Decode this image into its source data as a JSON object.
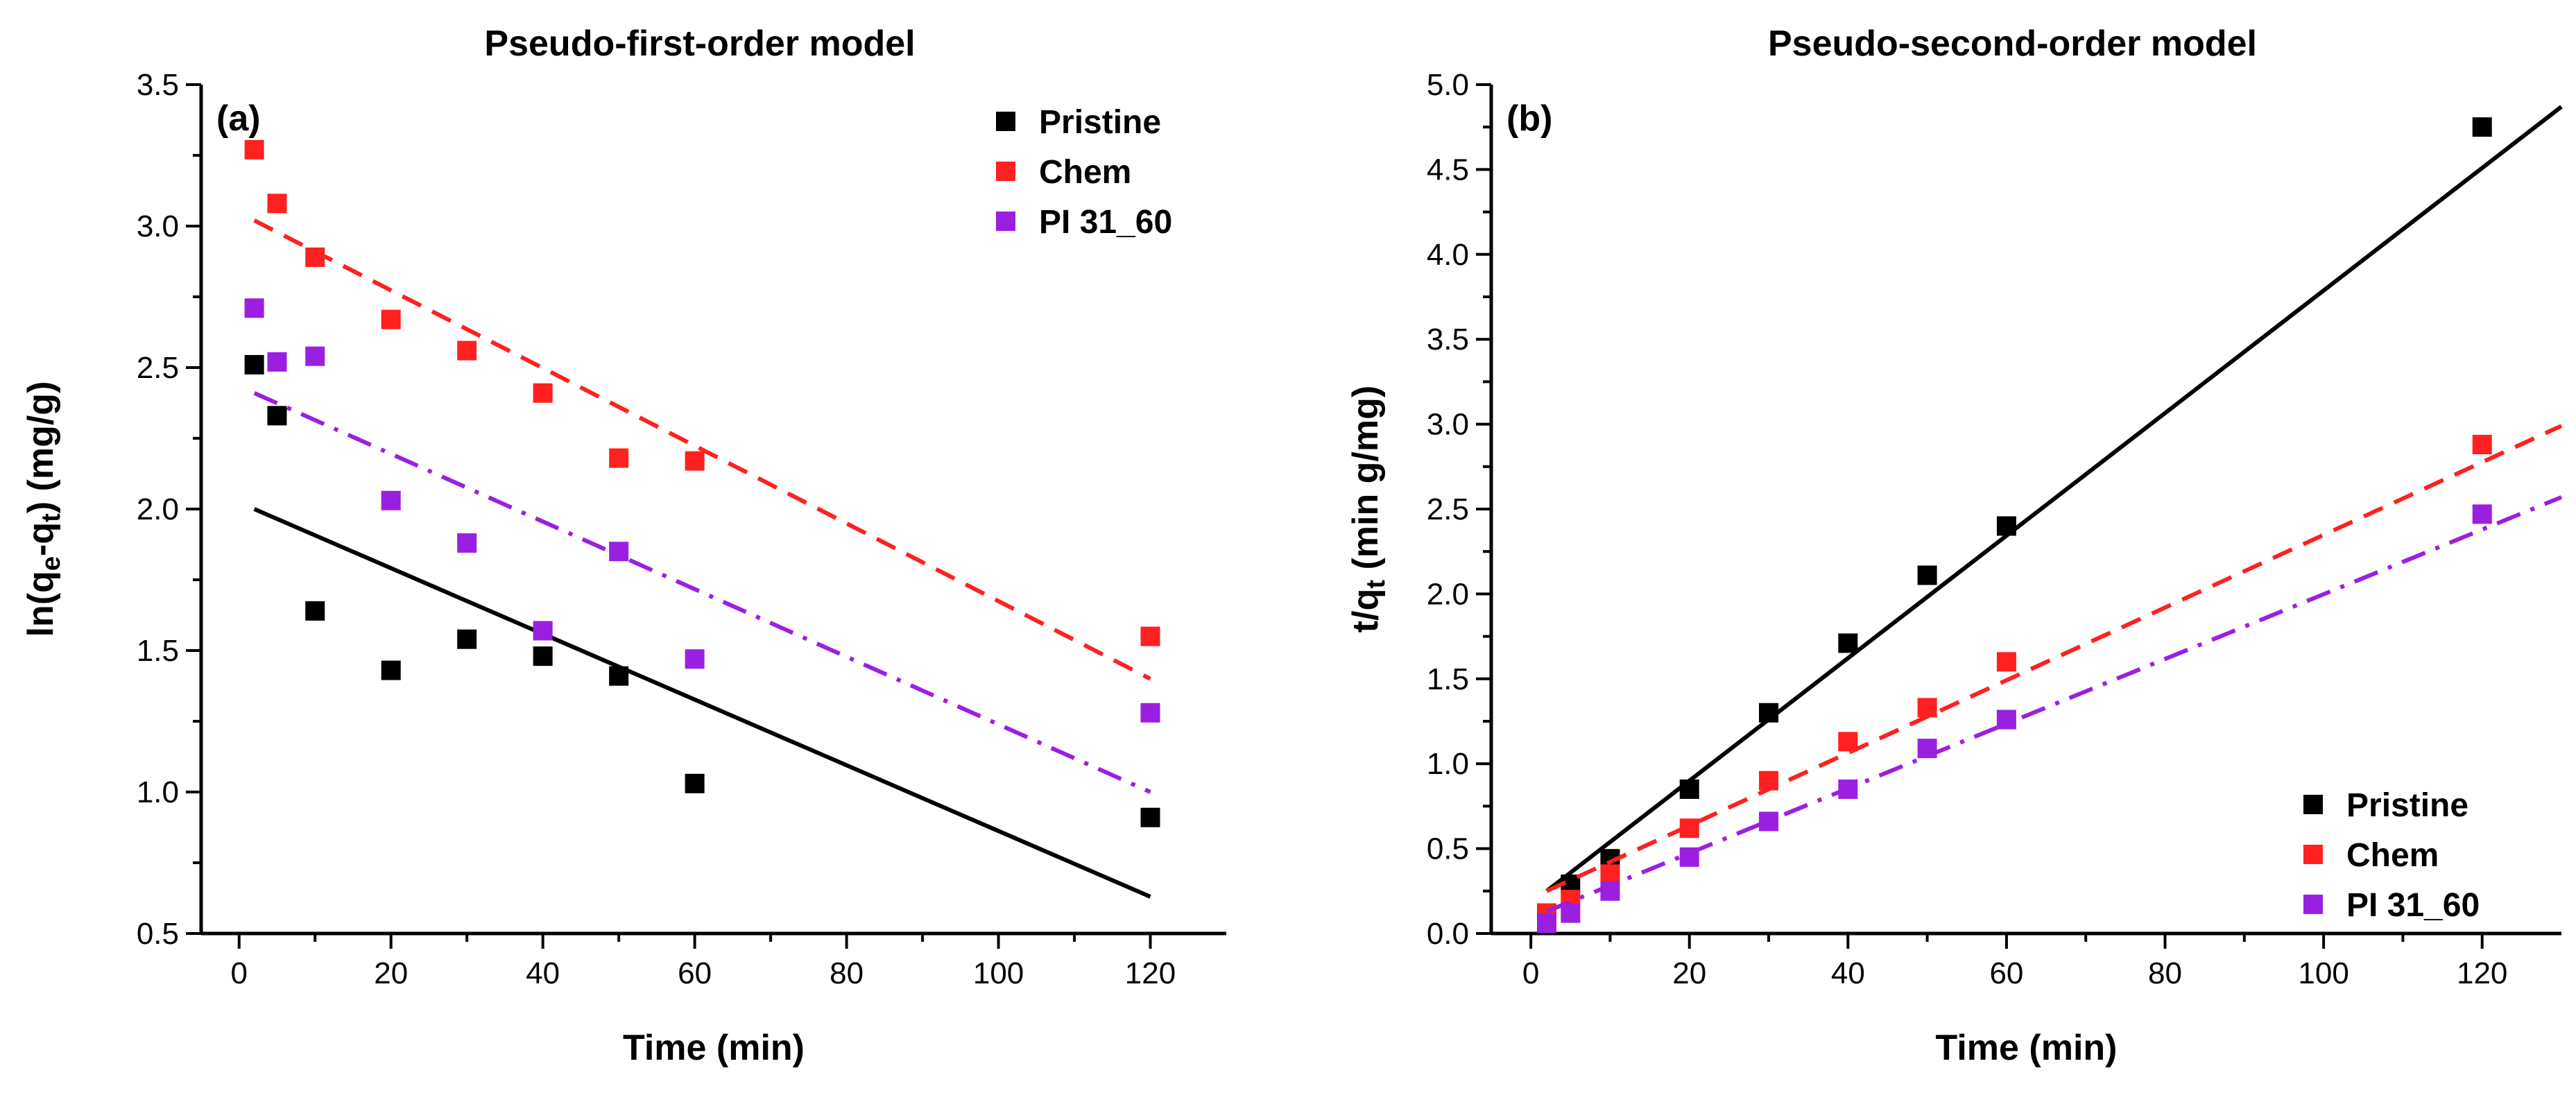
{
  "chart_data": [
    {
      "type": "scatter",
      "title": "Pseudo-first-order model",
      "panel_label": "(a)",
      "xlabel": "Time (min)",
      "ylabel_parts": [
        "ln(q",
        "e",
        "-q",
        "t",
        ") (mg/g)"
      ],
      "xlim": [
        -5,
        130
      ],
      "ylim": [
        0.5,
        3.5
      ],
      "xticks": [
        0,
        20,
        40,
        60,
        80,
        100,
        120
      ],
      "yticks": [
        0.5,
        1.0,
        1.5,
        2.0,
        2.5,
        3.0,
        3.5
      ],
      "xtick_labels": [
        "0",
        "20",
        "40",
        "60",
        "80",
        "100",
        "120"
      ],
      "ytick_labels": [
        "0.5",
        "1.0",
        "1.5",
        "2.0",
        "2.5",
        "3.0",
        "3.5"
      ],
      "legend_position": "top-right",
      "series": [
        {
          "name": "Pristine",
          "color": "#000000",
          "line_style": "solid",
          "x": [
            2,
            5,
            10,
            20,
            30,
            40,
            50,
            60,
            120
          ],
          "y": [
            2.51,
            2.33,
            1.64,
            1.43,
            1.54,
            1.48,
            1.41,
            1.03,
            0.91
          ],
          "fit": [
            [
              2,
              2.0
            ],
            [
              120,
              0.63
            ]
          ]
        },
        {
          "name": "Chem",
          "color": "#ff2020",
          "line_style": "dash",
          "x": [
            2,
            5,
            10,
            20,
            30,
            40,
            50,
            60,
            120
          ],
          "y": [
            3.27,
            3.08,
            2.89,
            2.67,
            2.56,
            2.41,
            2.18,
            2.17,
            1.55
          ],
          "fit": [
            [
              2,
              3.02
            ],
            [
              120,
              1.4
            ]
          ]
        },
        {
          "name": "PI 31_60",
          "color": "#9b1fe0",
          "line_style": "dashdot",
          "x": [
            2,
            5,
            10,
            20,
            30,
            40,
            50,
            60,
            120
          ],
          "y": [
            2.71,
            2.52,
            2.54,
            2.03,
            1.88,
            1.57,
            1.85,
            1.47,
            1.28
          ],
          "fit": [
            [
              2,
              2.41
            ],
            [
              120,
              1.0
            ]
          ]
        }
      ]
    },
    {
      "type": "scatter",
      "title": "Pseudo-second-order model",
      "panel_label": "(b)",
      "xlabel": "Time (min)",
      "ylabel_parts": [
        "t/q",
        "t",
        " (min g/mg)"
      ],
      "xlim": [
        -5,
        130
      ],
      "ylim": [
        0,
        5.0
      ],
      "xticks": [
        0,
        20,
        40,
        60,
        80,
        100,
        120
      ],
      "yticks": [
        0,
        0.5,
        1.0,
        1.5,
        2.0,
        2.5,
        3.0,
        3.5,
        4.0,
        4.5,
        5.0
      ],
      "xtick_labels": [
        "0",
        "20",
        "40",
        "60",
        "80",
        "100",
        "120"
      ],
      "ytick_labels": [
        "0.0",
        "0.5",
        "1.0",
        "1.5",
        "2.0",
        "2.5",
        "3.0",
        "3.5",
        "4.0",
        "4.5",
        "5.0"
      ],
      "legend_position": "bottom-right",
      "series": [
        {
          "name": "Pristine",
          "color": "#000000",
          "line_style": "solid",
          "x": [
            2,
            5,
            10,
            20,
            30,
            40,
            50,
            60,
            120
          ],
          "y": [
            0.12,
            0.29,
            0.44,
            0.85,
            1.3,
            1.71,
            2.11,
            2.4,
            4.75
          ],
          "fit": [
            [
              2,
              0.25
            ],
            [
              130,
              4.87
            ]
          ]
        },
        {
          "name": "Chem",
          "color": "#ff2020",
          "line_style": "dash",
          "x": [
            2,
            5,
            10,
            20,
            30,
            40,
            50,
            60,
            120
          ],
          "y": [
            0.12,
            0.2,
            0.35,
            0.62,
            0.9,
            1.13,
            1.33,
            1.6,
            2.88
          ],
          "fit": [
            [
              2,
              0.25
            ],
            [
              130,
              2.99
            ]
          ]
        },
        {
          "name": "PI 31_60",
          "color": "#9b1fe0",
          "line_style": "dashdot",
          "x": [
            2,
            5,
            10,
            20,
            30,
            40,
            50,
            60,
            120
          ],
          "y": [
            0.06,
            0.12,
            0.25,
            0.45,
            0.66,
            0.85,
            1.09,
            1.26,
            2.47
          ],
          "fit": [
            [
              2,
              0.13
            ],
            [
              130,
              2.57
            ]
          ]
        }
      ]
    }
  ]
}
